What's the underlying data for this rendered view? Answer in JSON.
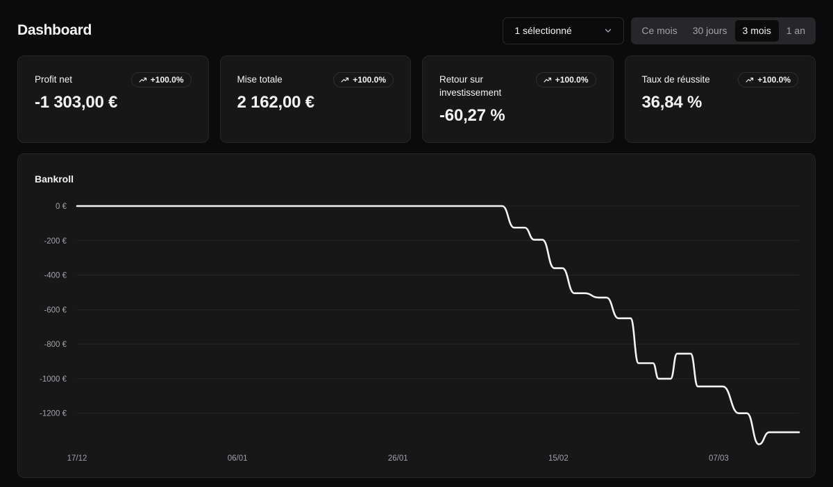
{
  "header": {
    "title": "Dashboard"
  },
  "filter": {
    "label": "1 sélectionné",
    "icon": "chevron-down-icon"
  },
  "periods": [
    {
      "label": "Ce mois",
      "active": false
    },
    {
      "label": "30 jours",
      "active": false
    },
    {
      "label": "3 mois",
      "active": true
    },
    {
      "label": "1 an",
      "active": false
    }
  ],
  "cards": [
    {
      "label": "Profit net",
      "value": "-1 303,00 €",
      "badge": "+100.0%",
      "icon": "trending-up-icon"
    },
    {
      "label": "Mise totale",
      "value": "2 162,00 €",
      "badge": "+100.0%",
      "icon": "trending-up-icon"
    },
    {
      "label": "Retour sur investissement",
      "value": "-60,27 %",
      "badge": "+100.0%",
      "icon": "trending-up-icon"
    },
    {
      "label": "Taux de réussite",
      "value": "36,84 %",
      "badge": "+100.0%",
      "icon": "trending-up-icon"
    }
  ],
  "chart_data": {
    "type": "line",
    "title": "Bankroll",
    "xlabel": "",
    "ylabel": "",
    "y_ticks": [
      0,
      -200,
      -400,
      -600,
      -800,
      -1000,
      -1200
    ],
    "y_tick_labels": [
      "0 €",
      "-200 €",
      "-400 €",
      "-600 €",
      "-800 €",
      "-1000 €",
      "-1200 €"
    ],
    "ylim": [
      -1370,
      0
    ],
    "x_tick_labels": [
      "17/12",
      "06/01",
      "26/01",
      "15/02",
      "07/03"
    ],
    "x_tick_days": [
      0,
      20,
      40,
      60,
      80
    ],
    "xlim_days": [
      0,
      90
    ],
    "grid": true,
    "line_color": "#f4f4f5",
    "series": [
      {
        "x_days": [
          0,
          53,
          54.5,
          55.8,
          57,
          58,
          59.5,
          60.5,
          62,
          63.3,
          65,
          66,
          67.5,
          69,
          70,
          71.8,
          72.5,
          74,
          74.8,
          76.5,
          77.4,
          78.4,
          79.2,
          80.5,
          82.5,
          83.5,
          85,
          86.3,
          86.9,
          87.5,
          88.4,
          90
        ],
        "values": [
          0,
          0,
          -125,
          -125,
          -195,
          -195,
          -360,
          -360,
          -505,
          -505,
          -530,
          -530,
          -650,
          -650,
          -910,
          -910,
          -1000,
          -1000,
          -855,
          -855,
          -1045,
          -1045,
          -1045,
          -1045,
          -1200,
          -1200,
          -1380,
          -1310,
          -1310,
          -1310,
          -1310,
          -1310
        ]
      }
    ]
  }
}
